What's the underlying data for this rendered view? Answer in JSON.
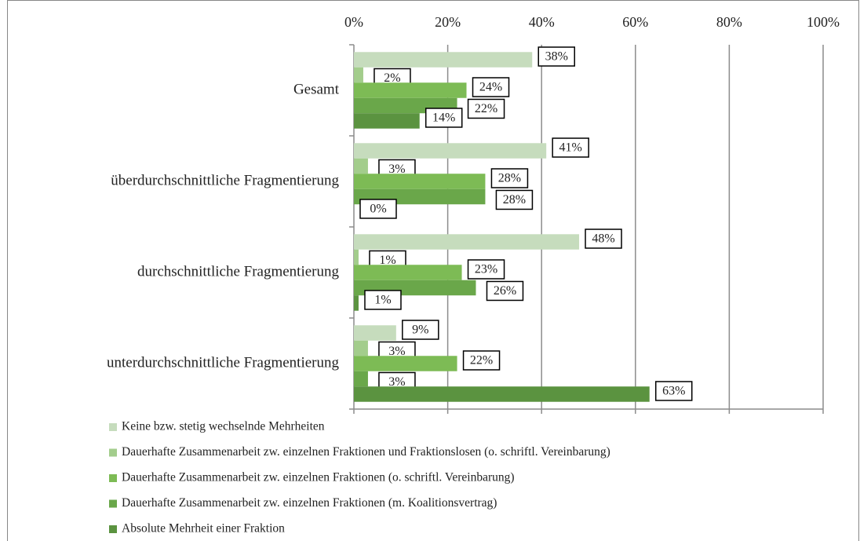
{
  "chart_data": {
    "type": "hbar",
    "categories": [
      "Gesamt",
      "überdurchschnittliche Fragmentierung",
      "durchschnittliche Fragmentierung",
      "unterdurchschnittliche Fragmentierung"
    ],
    "series": [
      {
        "name": "Keine bzw. stetig wechselnde Mehrheiten",
        "color": "#c6dcbd",
        "values": [
          38,
          41,
          48,
          9
        ],
        "value_labels": [
          "38%",
          "41%",
          "48%",
          "9%"
        ]
      },
      {
        "name": "Dauerhafte Zusammenarbeit zw. einzelnen Fraktionen und Fraktionslosen (o. schriftl. Vereinbarung)",
        "color": "#a3cd8c",
        "values": [
          2,
          3,
          1,
          3
        ],
        "value_labels": [
          "2%",
          "3%",
          "1%",
          "3%"
        ]
      },
      {
        "name": "Dauerhafte Zusammenarbeit zw. einzelnen Fraktionen (o. schriftl. Vereinbarung)",
        "color": "#7dbb55",
        "values": [
          24,
          28,
          23,
          22
        ],
        "value_labels": [
          "24%",
          "28%",
          "23%",
          "22%"
        ]
      },
      {
        "name": "Dauerhafte Zusammenarbeit zw. einzelnen Fraktionen (m. Koalitionsvertrag)",
        "color": "#6aa74a",
        "values": [
          22,
          28,
          26,
          3
        ],
        "value_labels": [
          "22%",
          "28%",
          "26%",
          "3%"
        ]
      },
      {
        "name": "Absolute Mehrheit einer Fraktion",
        "color": "#5b9340",
        "values": [
          14,
          0,
          1,
          63
        ],
        "value_labels": [
          "14%",
          "0%",
          "1%",
          "63%"
        ]
      }
    ],
    "xlim": [
      0,
      100
    ],
    "xticks": [
      {
        "value": 0,
        "label": "0%"
      },
      {
        "value": 20,
        "label": "20%"
      },
      {
        "value": 40,
        "label": "40%"
      },
      {
        "value": 60,
        "label": "60%"
      },
      {
        "value": 80,
        "label": "80%"
      },
      {
        "value": 100,
        "label": "100%"
      }
    ],
    "grid": true
  }
}
